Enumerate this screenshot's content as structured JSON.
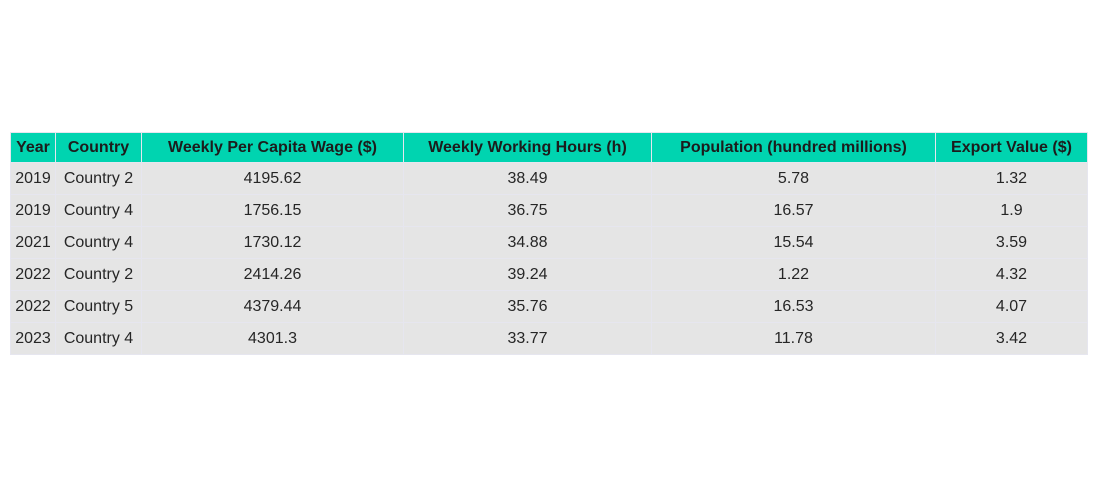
{
  "colors": {
    "header_bg": "#00d4b0",
    "cell_bg": "#e5e5e5"
  },
  "chart_data": {
    "type": "table",
    "columns": [
      "Year",
      "Country",
      "Weekly Per Capita Wage ($)",
      "Weekly Working Hours (h)",
      "Population (hundred millions)",
      "Export Value ($)"
    ],
    "rows": [
      [
        "2019",
        "Country 2",
        "4195.62",
        "38.49",
        "5.78",
        "1.32"
      ],
      [
        "2019",
        "Country 4",
        "1756.15",
        "36.75",
        "16.57",
        "1.9"
      ],
      [
        "2021",
        "Country 4",
        "1730.12",
        "34.88",
        "15.54",
        "3.59"
      ],
      [
        "2022",
        "Country 2",
        "2414.26",
        "39.24",
        "1.22",
        "4.32"
      ],
      [
        "2022",
        "Country 5",
        "4379.44",
        "35.76",
        "16.53",
        "4.07"
      ],
      [
        "2023",
        "Country 4",
        "4301.3",
        "33.77",
        "11.78",
        "3.42"
      ]
    ]
  }
}
